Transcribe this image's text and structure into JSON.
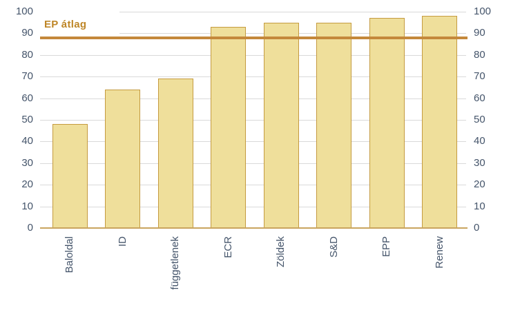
{
  "chart_data": {
    "type": "bar",
    "title": "",
    "xlabel": "",
    "ylabel": "",
    "categories": [
      "Baloldal",
      "ID",
      "függetlenek",
      "ECR",
      "Zöldek",
      "S&D",
      "EPP",
      "Renew"
    ],
    "values": [
      48,
      64,
      69,
      93,
      95,
      95,
      97,
      98
    ],
    "ylim": [
      0,
      100
    ],
    "ytick_step": 10,
    "grid": true,
    "dual_y_axis": true,
    "reference_line": {
      "label": "EP átlag",
      "value": 88
    },
    "colors": {
      "bar_fill": "#EFDF9B",
      "bar_border": "#C49A3F",
      "baseline": "#C9A45E",
      "gridline": "#D9D9D9",
      "reference_line": "#C4883B",
      "reference_label": "#BE8627",
      "axis_text": "#44546A"
    }
  }
}
